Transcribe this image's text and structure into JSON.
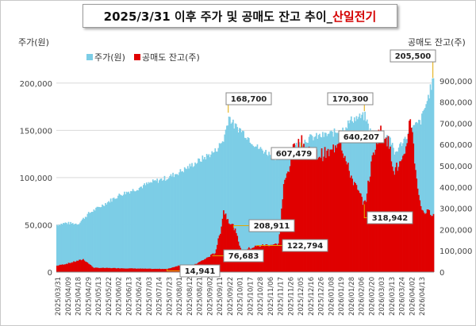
{
  "title": {
    "main": "2025/3/31 이후 주가 및 공매도 잔고 추이_",
    "accent": "산일전기"
  },
  "colors": {
    "price": "#7ccde6",
    "short": "#e00000",
    "accent": "#d40000"
  },
  "chart_data": {
    "type": "bar",
    "ylabel_left": "주가(원)",
    "ylabel_right": "공매도 잔고(주)",
    "ylim_left": [
      0,
      225000
    ],
    "ylim_right": [
      0,
      1000000
    ],
    "yticks_left": [
      "0",
      "50,000",
      "100,000",
      "150,000",
      "200,000"
    ],
    "yticks_right": [
      "0",
      "100,000",
      "200,000",
      "300,000",
      "400,000",
      "500,000",
      "600,000",
      "700,000",
      "800,000",
      "900,000"
    ],
    "legend": {
      "position": "top-left"
    },
    "x_tick_labels": [
      "2025/03/31",
      "2025/04/09",
      "2025/04/18",
      "2025/04/29",
      "2025/05/13",
      "2025/05/22",
      "2025/06/02",
      "2025/06/13",
      "2025/06/24",
      "2025/07/03",
      "2025/07/14",
      "2025/07/23",
      "2025/08/01",
      "2025/08/12",
      "2025/08/21",
      "2025/09/02",
      "2025/09/11",
      "2025/09/22",
      "2025/10/01",
      "2025/10/17",
      "2025/10/28",
      "2025/11/06",
      "2025/11/17",
      "2025/11/26",
      "2025/12/05",
      "2025/12/16",
      "2025/12/26",
      "2026/01/08",
      "2026/01/19",
      "2026/01/28",
      "2026/02/06",
      "2026/02/20",
      "2026/03/03",
      "2026/03/13",
      "2026/03/24",
      "2026/04/02",
      "2026/04/13"
    ],
    "series": [
      {
        "name": "주가(원)",
        "axis": "left",
        "anchors": [
          [
            0,
            50000
          ],
          [
            8,
            52000
          ],
          [
            20,
            51000
          ],
          [
            30,
            62000
          ],
          [
            45,
            72000
          ],
          [
            60,
            82000
          ],
          [
            75,
            88000
          ],
          [
            90,
            95000
          ],
          [
            105,
            100000
          ],
          [
            120,
            108000
          ],
          [
            135,
            118000
          ],
          [
            150,
            128000
          ],
          [
            158,
            140000
          ],
          [
            163,
            165000
          ],
          [
            168,
            155000
          ],
          [
            175,
            150000
          ],
          [
            190,
            132000
          ],
          [
            210,
            120000
          ],
          [
            228,
            135000
          ],
          [
            240,
            142000
          ],
          [
            255,
            145000
          ],
          [
            270,
            150000
          ],
          [
            280,
            162000
          ],
          [
            292,
            165000
          ],
          [
            300,
            140000
          ],
          [
            315,
            145000
          ],
          [
            320,
            125000
          ],
          [
            335,
            150000
          ],
          [
            345,
            160000
          ],
          [
            352,
            185000
          ],
          [
            357,
            205500
          ]
        ]
      },
      {
        "name": "공매도 잔고(주)",
        "axis": "right",
        "anchors": [
          [
            0,
            30000
          ],
          [
            10,
            40000
          ],
          [
            25,
            60000
          ],
          [
            35,
            20000
          ],
          [
            60,
            18000
          ],
          [
            90,
            15000
          ],
          [
            105,
            14941
          ],
          [
            115,
            30000
          ],
          [
            125,
            20000
          ],
          [
            140,
            60000
          ],
          [
            150,
            90000
          ],
          [
            155,
            190000
          ],
          [
            158,
            290000
          ],
          [
            162,
            250000
          ],
          [
            168,
            208911
          ],
          [
            175,
            100000
          ],
          [
            190,
            122794
          ],
          [
            205,
            130000
          ],
          [
            210,
            130000
          ],
          [
            215,
            400000
          ],
          [
            225,
            590000
          ],
          [
            232,
            607479
          ],
          [
            245,
            550000
          ],
          [
            260,
            560000
          ],
          [
            268,
            640207
          ],
          [
            275,
            500000
          ],
          [
            285,
            380000
          ],
          [
            292,
            318942
          ],
          [
            300,
            560000
          ],
          [
            305,
            660000
          ],
          [
            312,
            650000
          ],
          [
            320,
            480000
          ],
          [
            330,
            530000
          ],
          [
            335,
            750000
          ],
          [
            340,
            480000
          ],
          [
            345,
            300000
          ],
          [
            350,
            280000
          ],
          [
            357,
            280000
          ]
        ]
      }
    ],
    "n_days": 358,
    "annotations": [
      {
        "text": "168,700",
        "series": "price",
        "day": 163,
        "value": 168700
      },
      {
        "text": "170,300",
        "series": "price",
        "day": 292,
        "value": 170300
      },
      {
        "text": "205,500",
        "series": "price",
        "day": 357,
        "value": 205500
      },
      {
        "text": "14,941",
        "series": "short",
        "day": 105,
        "value": 14941
      },
      {
        "text": "76,683",
        "series": "short",
        "day": 148,
        "value": 76683
      },
      {
        "text": "208,911",
        "series": "short",
        "day": 168,
        "value": 208911
      },
      {
        "text": "122,794",
        "series": "short",
        "day": 190,
        "value": 122794
      },
      {
        "text": "607,479",
        "series": "short",
        "day": 232,
        "value": 607479
      },
      {
        "text": "640,207",
        "series": "short",
        "day": 268,
        "value": 640207
      },
      {
        "text": "318,942",
        "series": "short",
        "day": 292,
        "value": 318942
      }
    ]
  }
}
